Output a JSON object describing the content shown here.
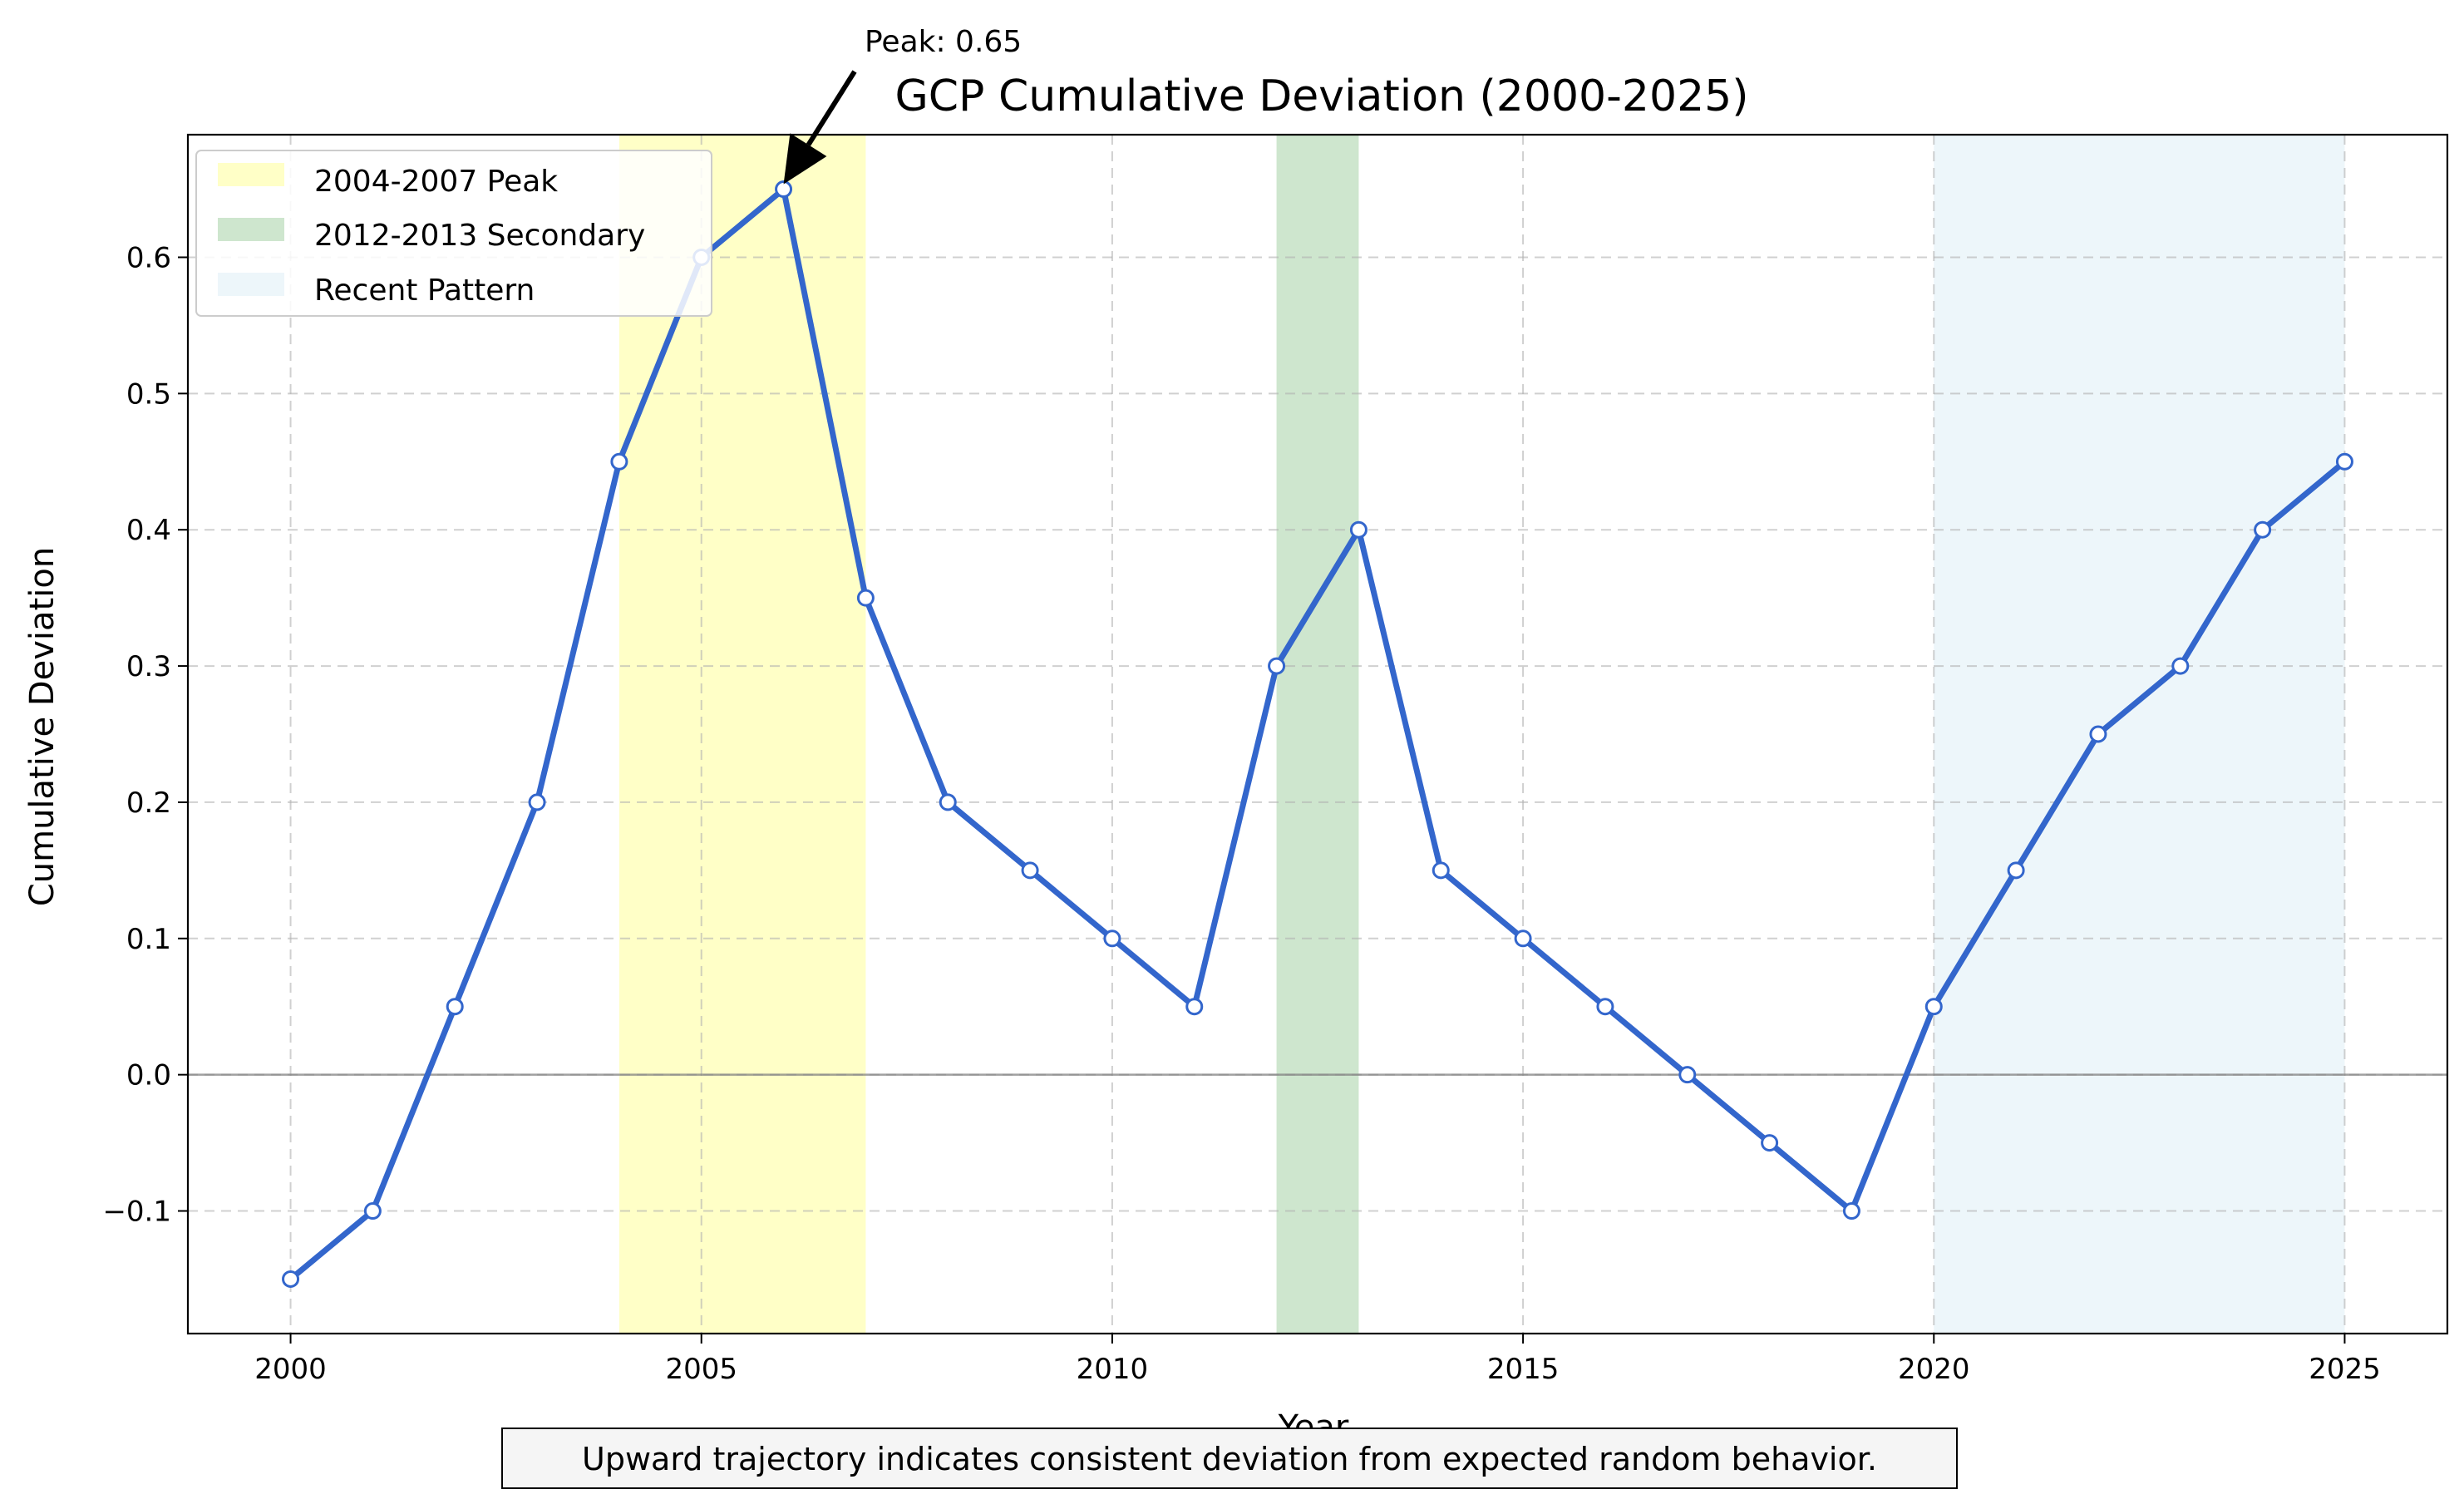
{
  "chart_data": {
    "type": "line",
    "title": "GCP Cumulative Deviation (2000-2025)",
    "xlabel": "Year",
    "ylabel": "Cumulative Deviation",
    "xlim": [
      1998.75,
      2026.25
    ],
    "ylim": [
      -0.19,
      0.69
    ],
    "x_ticks": [
      2000,
      2005,
      2010,
      2015,
      2020,
      2025
    ],
    "y_ticks": [
      -0.1,
      0.0,
      0.1,
      0.2,
      0.3,
      0.4,
      0.5,
      0.6
    ],
    "x_tick_labels": [
      "2000",
      "2005",
      "2010",
      "2015",
      "2020",
      "2025"
    ],
    "y_tick_labels": [
      "−0.1",
      "0.0",
      "0.1",
      "0.2",
      "0.3",
      "0.4",
      "0.5",
      "0.6"
    ],
    "grid": true,
    "legend_position": "top-left",
    "series": [
      {
        "color": "#3366cc",
        "x": [
          2000,
          2001,
          2002,
          2003,
          2004,
          2005,
          2006,
          2007,
          2008,
          2009,
          2010,
          2011,
          2012,
          2013,
          2014,
          2015,
          2016,
          2017,
          2018,
          2019,
          2020,
          2021,
          2022,
          2023,
          2024,
          2025
        ],
        "y": [
          -0.15,
          -0.1,
          0.05,
          0.2,
          0.45,
          0.6,
          0.65,
          0.35,
          0.2,
          0.15,
          0.1,
          0.05,
          0.3,
          0.4,
          0.15,
          0.1,
          0.05,
          0.0,
          -0.05,
          -0.1,
          0.05,
          0.15,
          0.25,
          0.3,
          0.4,
          0.45
        ]
      }
    ],
    "shaded_regions": [
      {
        "label": "2004-2007 Peak",
        "x0": 2004,
        "x1": 2007,
        "color": "#ffff99",
        "opacity": 0.55
      },
      {
        "label": "2012-2013 Secondary",
        "x0": 2012,
        "x1": 2013,
        "color": "#228b22",
        "opacity": 0.22
      },
      {
        "label": "Recent Pattern",
        "x0": 2020,
        "x1": 2025,
        "color": "#add8e6",
        "opacity": 0.22
      }
    ],
    "annotations": [
      {
        "text": "Peak: 0.65",
        "x": 2006,
        "y": 0.65
      }
    ],
    "footnote": "Upward trajectory indicates consistent deviation from expected random behavior."
  }
}
